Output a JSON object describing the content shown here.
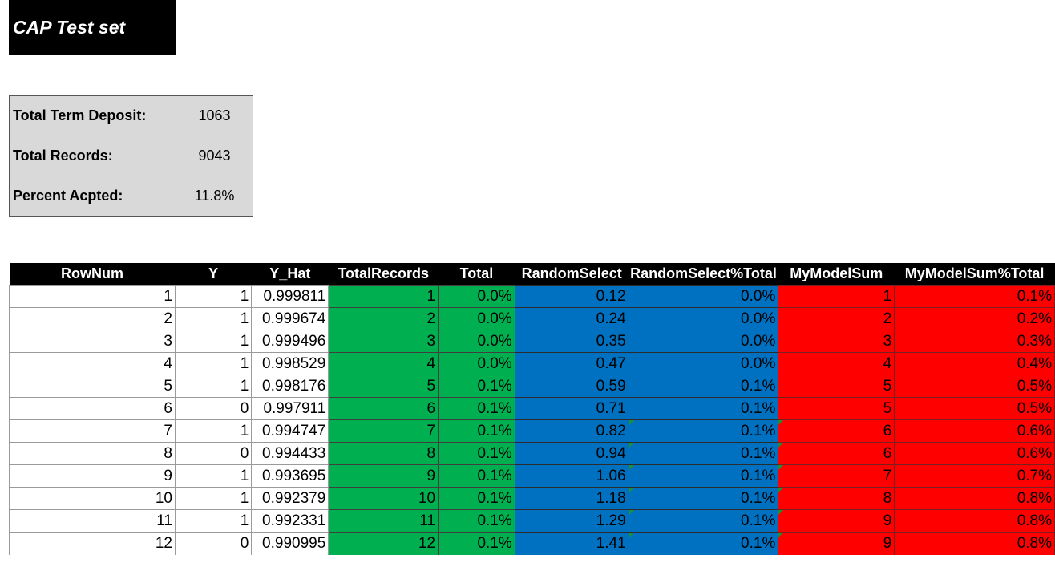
{
  "title": "CAP Test set",
  "summary": [
    {
      "label": "Total Term Deposit:",
      "value": "1063"
    },
    {
      "label": "Total Records:",
      "value": "9043"
    },
    {
      "label": "Percent Acpted:",
      "value": "11.8%"
    }
  ],
  "table": {
    "headers": [
      "RowNum",
      "Y",
      "Y_Hat",
      "TotalRecords",
      "Total",
      "RandomSelect",
      "RandomSelect%Total",
      "MyModelSum",
      "MyModelSum%Total"
    ],
    "rows": [
      [
        "1",
        "1",
        "0.999811",
        "1",
        "0.0%",
        "0.12",
        "0.0%",
        "1",
        "0.1%"
      ],
      [
        "2",
        "1",
        "0.999674",
        "2",
        "0.0%",
        "0.24",
        "0.0%",
        "2",
        "0.2%"
      ],
      [
        "3",
        "1",
        "0.999496",
        "3",
        "0.0%",
        "0.35",
        "0.0%",
        "3",
        "0.3%"
      ],
      [
        "4",
        "1",
        "0.998529",
        "4",
        "0.0%",
        "0.47",
        "0.0%",
        "4",
        "0.4%"
      ],
      [
        "5",
        "1",
        "0.998176",
        "5",
        "0.1%",
        "0.59",
        "0.1%",
        "5",
        "0.5%"
      ],
      [
        "6",
        "0",
        "0.997911",
        "6",
        "0.1%",
        "0.71",
        "0.1%",
        "5",
        "0.5%"
      ],
      [
        "7",
        "1",
        "0.994747",
        "7",
        "0.1%",
        "0.82",
        "0.1%",
        "6",
        "0.6%"
      ],
      [
        "8",
        "0",
        "0.994433",
        "8",
        "0.1%",
        "0.94",
        "0.1%",
        "6",
        "0.6%"
      ],
      [
        "9",
        "1",
        "0.993695",
        "9",
        "0.1%",
        "1.06",
        "0.1%",
        "7",
        "0.7%"
      ],
      [
        "10",
        "1",
        "0.992379",
        "10",
        "0.1%",
        "1.18",
        "0.1%",
        "8",
        "0.8%"
      ],
      [
        "11",
        "1",
        "0.992331",
        "11",
        "0.1%",
        "1.29",
        "0.1%",
        "9",
        "0.8%"
      ],
      [
        "12",
        "0",
        "0.990995",
        "12",
        "0.1%",
        "1.41",
        "0.1%",
        "9",
        "0.8%"
      ]
    ]
  },
  "colors": {
    "header_bg": "#000000",
    "total_records_fill": "#00b050",
    "random_select_fill": "#0070c0",
    "model_sum_fill": "#ff0000"
  }
}
